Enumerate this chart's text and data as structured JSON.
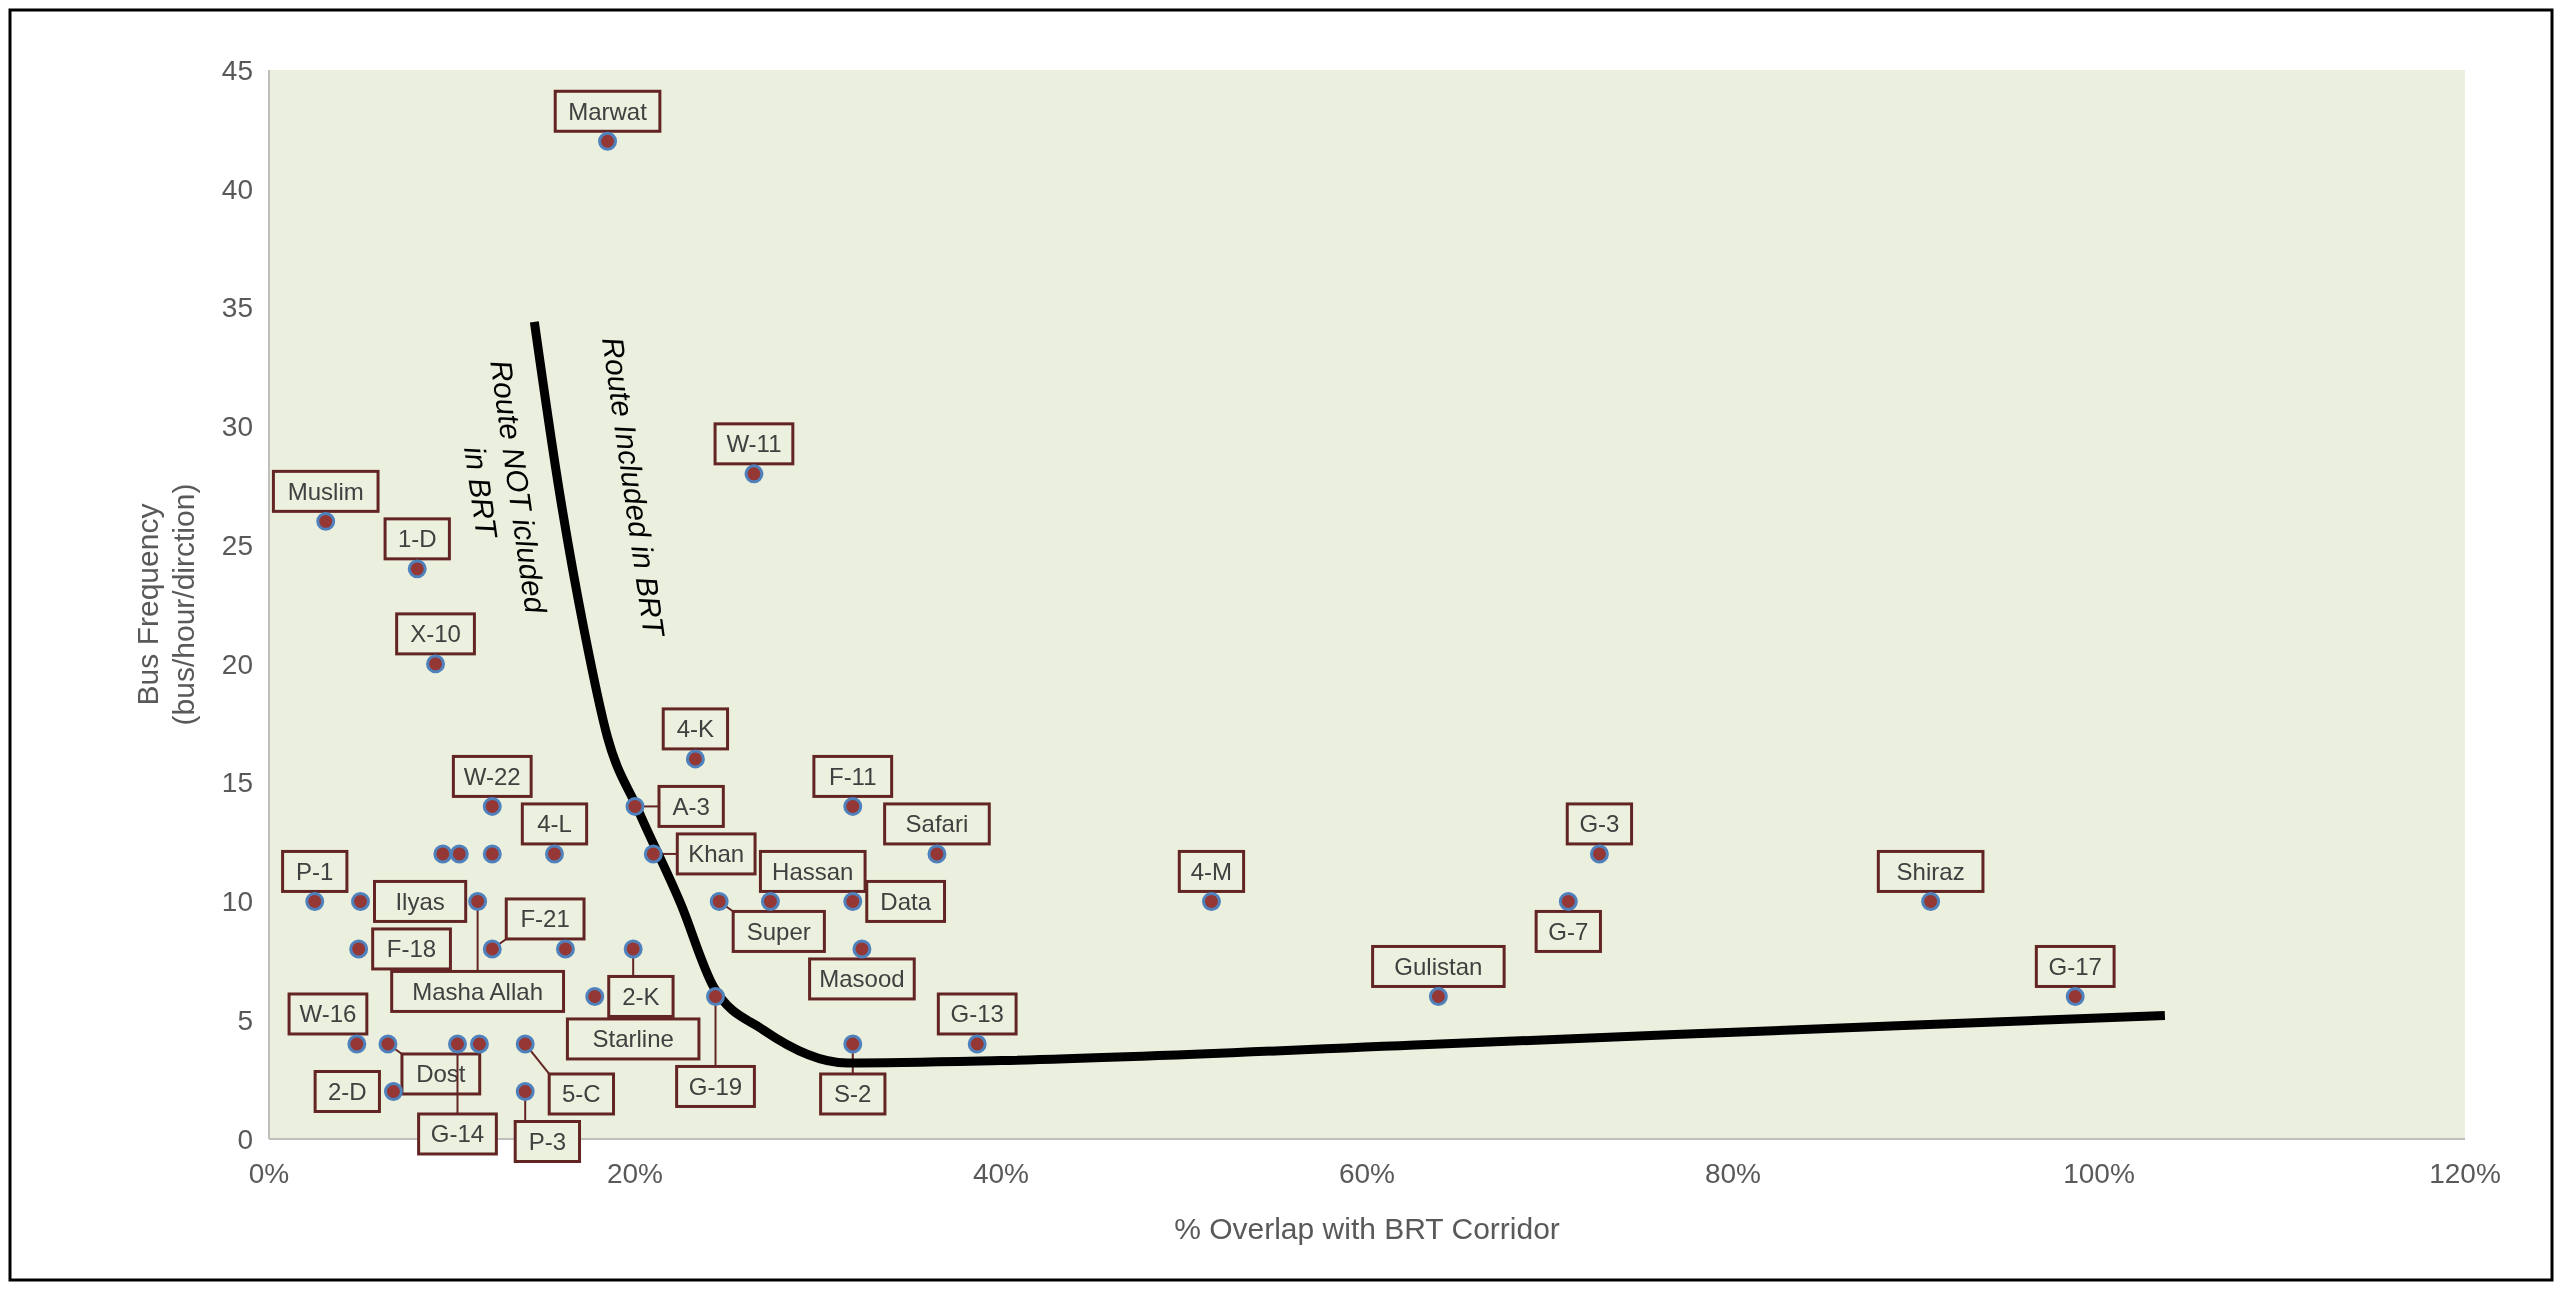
{
  "chart_data": {
    "type": "scatter",
    "xlabel": "% Overlap with BRT Corridor",
    "ylabel": "Bus Frequency\n(bus/hour/dirction)",
    "xlim": [
      0,
      120
    ],
    "ylim": [
      0,
      45
    ],
    "xticks": [
      {
        "value": 0,
        "label": "0%"
      },
      {
        "value": 20,
        "label": "20%"
      },
      {
        "value": 40,
        "label": "40%"
      },
      {
        "value": 60,
        "label": "60%"
      },
      {
        "value": 80,
        "label": "80%"
      },
      {
        "value": 100,
        "label": "100%"
      },
      {
        "value": 120,
        "label": "120%"
      }
    ],
    "yticks": [
      0,
      5,
      10,
      15,
      20,
      25,
      30,
      35,
      40,
      45
    ],
    "series": [
      {
        "color": "#953735",
        "marker": "circle",
        "x": [
          18.5,
          3.1,
          8.1,
          9.1,
          26.5,
          23.3,
          12.2,
          9.5,
          10.4,
          12.2,
          15.6,
          2.5,
          5.0,
          11.4,
          4.9,
          12.2,
          16.2,
          19.9,
          17.8,
          4.8,
          6.5,
          10.3,
          11.5,
          14.0,
          6.8,
          14.0,
          20.0,
          21.0,
          31.9,
          36.5,
          24.6,
          27.4,
          31.9,
          32.4,
          24.4,
          31.9,
          38.7,
          51.5,
          72.7,
          71.0,
          63.9,
          90.8,
          98.7
        ],
        "values": [
          42,
          26,
          24,
          20,
          28,
          16,
          14,
          12,
          12,
          12,
          12,
          10,
          10,
          10,
          8,
          8,
          8,
          8,
          6,
          4,
          4,
          4,
          4,
          4,
          2,
          2,
          14,
          12,
          14,
          12,
          10,
          10,
          10,
          8,
          6,
          4,
          4,
          10,
          12,
          10,
          6,
          10,
          6
        ]
      },
      {
        "type": "line",
        "color": "#000000",
        "marker": "none",
        "x": [
          14.5,
          15.9,
          17.2,
          18.5,
          20.2,
          22.5,
          24.3,
          27,
          31.6,
          40,
          64,
          90,
          103.6
        ],
        "values": [
          34.4,
          27.1,
          21.5,
          16.9,
          13.8,
          9.9,
          6.4,
          4.6,
          3.2,
          3.3,
          4.0,
          4.8,
          5.2
        ]
      }
    ],
    "annotations": [
      "Route NOT icluded\nin BRT",
      "Route Included in BRT",
      {
        "text": "Marwat",
        "x": 18.5,
        "y": 42
      },
      {
        "text": "Muslim",
        "x": 3.1,
        "y": 26
      },
      {
        "text": "1-D",
        "x": 8.1,
        "y": 24
      },
      {
        "text": "X-10",
        "x": 9.1,
        "y": 20
      },
      {
        "text": "W-11",
        "x": 26.5,
        "y": 28
      },
      {
        "text": "4-K",
        "x": 23.3,
        "y": 16
      },
      {
        "text": "W-22",
        "x": 12.2,
        "y": 14
      },
      {
        "text": "4-L",
        "x": 15.6,
        "y": 12
      },
      {
        "text": "P-1",
        "x": 2.5,
        "y": 10
      },
      {
        "text": "Ilyas",
        "x": 5.0,
        "y": 10
      },
      {
        "text": "Masha Allah",
        "x": 11.4,
        "y": 10
      },
      {
        "text": "F-18",
        "x": 4.9,
        "y": 8
      },
      {
        "text": "F-21",
        "x": 12.2,
        "y": 8
      },
      {
        "text": "Starline",
        "x": 19.9,
        "y": 8
      },
      {
        "text": "2-K",
        "x": 17.8,
        "y": 6
      },
      {
        "text": "W-16",
        "x": 4.8,
        "y": 4
      },
      {
        "text": "Dost",
        "x": 6.5,
        "y": 4
      },
      {
        "text": "G-14",
        "x": 10.3,
        "y": 4
      },
      {
        "text": "5-C",
        "x": 14.0,
        "y": 4
      },
      {
        "text": "2-D",
        "x": 6.8,
        "y": 2
      },
      {
        "text": "P-3",
        "x": 14.0,
        "y": 2
      },
      {
        "text": "A-3",
        "x": 20.0,
        "y": 14
      },
      {
        "text": "Khan",
        "x": 21.0,
        "y": 12
      },
      {
        "text": "F-11",
        "x": 31.9,
        "y": 14
      },
      {
        "text": "Safari",
        "x": 36.5,
        "y": 12
      },
      {
        "text": "Super",
        "x": 24.6,
        "y": 10
      },
      {
        "text": "Hassan",
        "x": 27.4,
        "y": 10
      },
      {
        "text": "Data",
        "x": 31.9,
        "y": 10
      },
      {
        "text": "Masood",
        "x": 32.4,
        "y": 8
      },
      {
        "text": "G-19",
        "x": 24.4,
        "y": 6
      },
      {
        "text": "S-2",
        "x": 31.9,
        "y": 4
      },
      {
        "text": "G-13",
        "x": 38.7,
        "y": 4
      },
      {
        "text": "4-M",
        "x": 51.5,
        "y": 10
      },
      {
        "text": "G-3",
        "x": 72.7,
        "y": 12
      },
      {
        "text": "G-7",
        "x": 71.0,
        "y": 10
      },
      {
        "text": "Gulistan",
        "x": 63.9,
        "y": 6
      },
      {
        "text": "Shiraz",
        "x": 90.8,
        "y": 10
      },
      {
        "text": "G-17",
        "x": 98.7,
        "y": 6
      }
    ]
  }
}
